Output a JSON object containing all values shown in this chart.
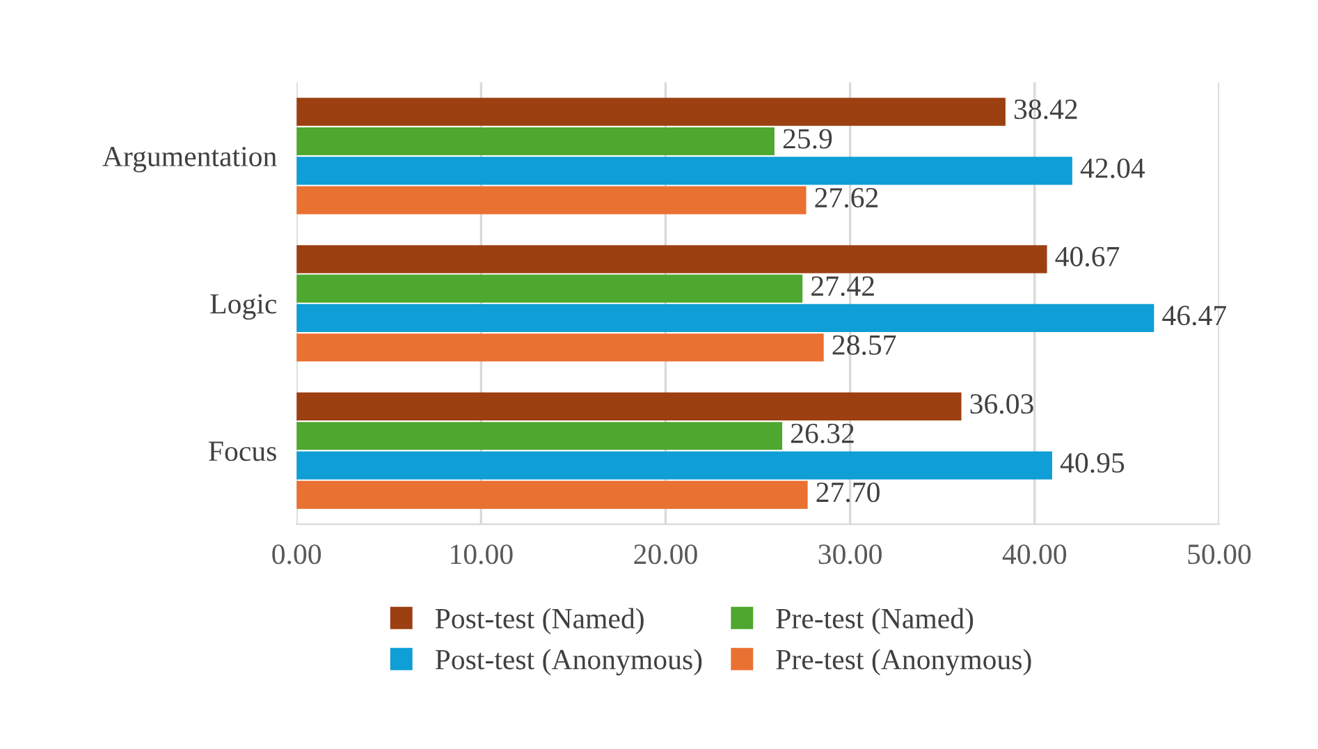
{
  "chart_data": {
    "type": "bar",
    "orientation": "horizontal",
    "categories": [
      "Argumentation",
      "Logic",
      "Focus"
    ],
    "series": [
      {
        "name": "Post-test (Named)",
        "color": "#9c3f11",
        "values": [
          38.42,
          40.67,
          36.03
        ],
        "value_labels": [
          "38.42",
          "40.67",
          "36.03"
        ]
      },
      {
        "name": "Pre-test (Named)",
        "color": "#4ea72e",
        "values": [
          25.9,
          27.42,
          26.32
        ],
        "value_labels": [
          "25.9",
          "27.42",
          "26.32"
        ]
      },
      {
        "name": "Post-test (Anonymous)",
        "color": "#0f9ed5",
        "values": [
          42.04,
          46.47,
          40.95
        ],
        "value_labels": [
          "42.04",
          "46.47",
          "40.95"
        ]
      },
      {
        "name": "Pre-test (Anonymous)",
        "color": "#e97132",
        "values": [
          27.62,
          28.57,
          27.7
        ],
        "value_labels": [
          "27.62",
          "28.57",
          "27.70"
        ]
      }
    ],
    "xlim": [
      0,
      50
    ],
    "xticks": [
      {
        "value": 0,
        "label": "0.00"
      },
      {
        "value": 10,
        "label": "10.00"
      },
      {
        "value": 20,
        "label": "20.00"
      },
      {
        "value": 30,
        "label": "30.00"
      },
      {
        "value": 40,
        "label": "40.00"
      },
      {
        "value": 50,
        "label": "50.00"
      }
    ],
    "grid": "x",
    "legend": "bottom"
  }
}
